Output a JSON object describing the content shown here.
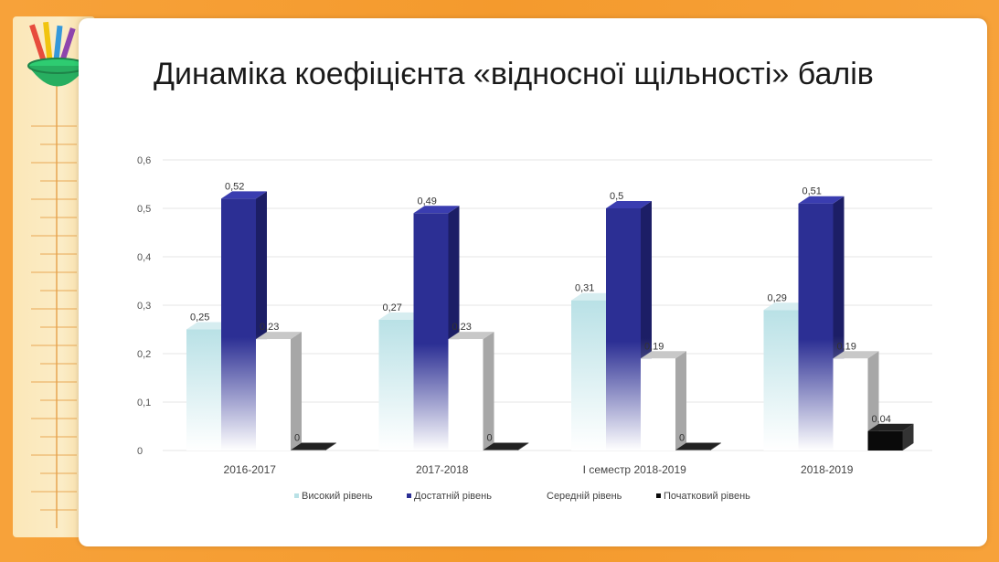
{
  "slide": {
    "title": "Динаміка коефіцієнта «відносної щільності» балів"
  },
  "chart_data": {
    "type": "bar",
    "categories": [
      "2016-2017",
      "2017-2018",
      "І семестр 2018-2019",
      "2018-2019"
    ],
    "series": [
      {
        "name": "Високий рівень",
        "values": [
          0.25,
          0.27,
          0.31,
          0.29
        ],
        "labels": [
          "0,25",
          "0,27",
          "0,31",
          "0,29"
        ],
        "color": "#b9e1e6"
      },
      {
        "name": "Достатній рівень",
        "values": [
          0.52,
          0.49,
          0.5,
          0.51
        ],
        "labels": [
          "0,52",
          "0,49",
          "0,5",
          "0,51"
        ],
        "color": "#2c2f94"
      },
      {
        "name": "Середній рівень",
        "values": [
          0.23,
          0.23,
          0.19,
          0.19
        ],
        "labels": [
          "0,23",
          "0,23",
          "0,19",
          "0,19"
        ],
        "color": "#ffffff"
      },
      {
        "name": "Початковий рівень",
        "values": [
          0,
          0,
          0,
          0.04
        ],
        "labels": [
          "0",
          "0",
          "0",
          "0,04"
        ],
        "color": "#0a0a0a"
      }
    ],
    "y_ticks": [
      "0",
      "0,1",
      "0,2",
      "0,3",
      "0,4",
      "0,5",
      "0,6"
    ],
    "ylim": [
      0,
      0.6
    ],
    "grid": true,
    "legend_position": "bottom"
  }
}
